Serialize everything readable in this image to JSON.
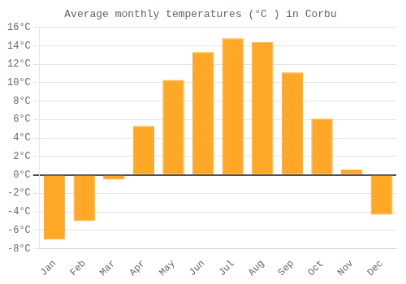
{
  "chart_data": {
    "type": "bar",
    "title": "Average monthly temperatures (°C ) in Corbu",
    "categories": [
      "Jan",
      "Feb",
      "Mar",
      "Apr",
      "May",
      "Jun",
      "Jul",
      "Aug",
      "Sep",
      "Oct",
      "Nov",
      "Dec"
    ],
    "values": [
      -7.0,
      -5.0,
      -0.5,
      5.3,
      10.3,
      13.3,
      14.8,
      14.4,
      11.1,
      6.1,
      0.6,
      -4.3
    ],
    "color": "#FFA726",
    "ylim": [
      -8,
      16
    ],
    "yticks": [
      {
        "value": -8,
        "label": "-8°C"
      },
      {
        "value": -6,
        "label": "-6°C"
      },
      {
        "value": -4,
        "label": "-4°C"
      },
      {
        "value": -2,
        "label": "-2°C"
      },
      {
        "value": 0,
        "label": "0°C"
      },
      {
        "value": 2,
        "label": "2°C"
      },
      {
        "value": 4,
        "label": "4°C"
      },
      {
        "value": 6,
        "label": "6°C"
      },
      {
        "value": 8,
        "label": "8°C"
      },
      {
        "value": 10,
        "label": "10°C"
      },
      {
        "value": 12,
        "label": "12°C"
      },
      {
        "value": 14,
        "label": "14°C"
      },
      {
        "value": 16,
        "label": "16°C"
      }
    ],
    "grid": true
  }
}
